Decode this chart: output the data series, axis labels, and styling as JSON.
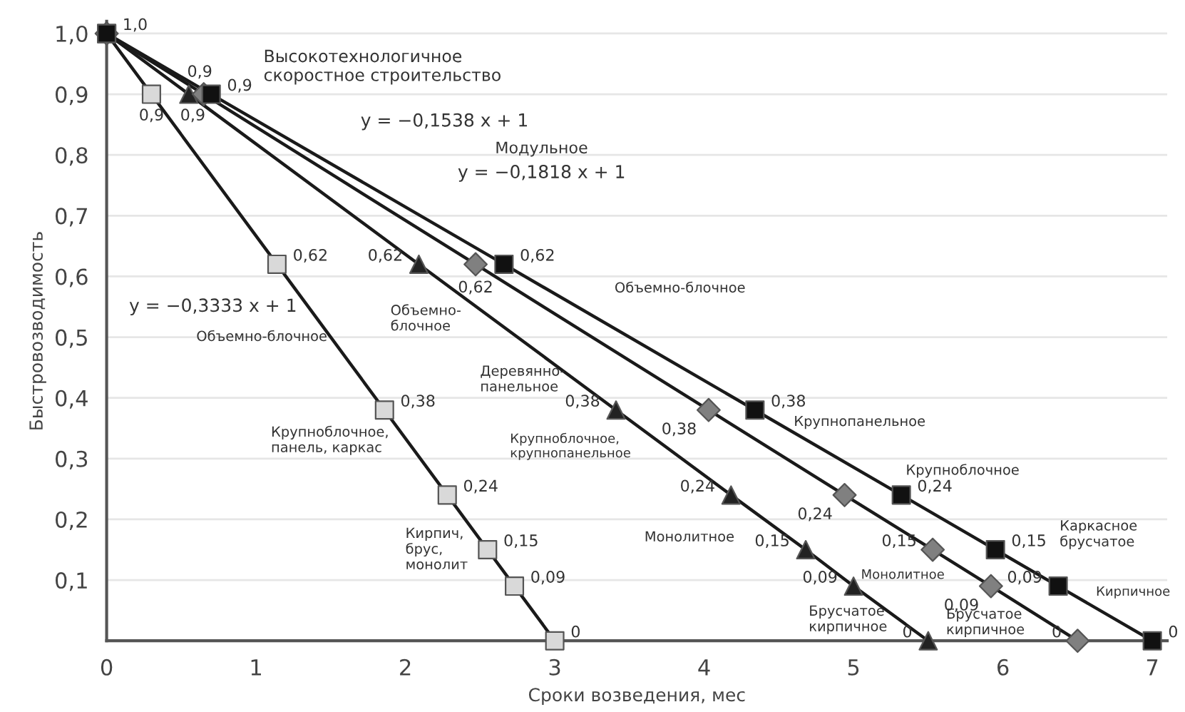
{
  "chart_data": {
    "type": "line",
    "xlabel": "Сроки возведения, мес",
    "ylabel": "Быстровозводимость",
    "xlim": [
      0,
      7.1
    ],
    "ylim": [
      0,
      1.02
    ],
    "xticks": [
      0,
      1,
      2,
      3,
      4,
      5,
      6,
      7
    ],
    "yticks": [
      {
        "value": 0.1,
        "label": "0,1"
      },
      {
        "value": 0.2,
        "label": "0,2"
      },
      {
        "value": 0.3,
        "label": "0,3"
      },
      {
        "value": 0.4,
        "label": "0,4"
      },
      {
        "value": 0.5,
        "label": "0,5"
      },
      {
        "value": 0.6,
        "label": "0,6"
      },
      {
        "value": 0.7,
        "label": "0,7"
      },
      {
        "value": 0.8,
        "label": "0,8"
      },
      {
        "value": 0.9,
        "label": "0,9"
      },
      {
        "value": 1.0,
        "label": "1,0"
      }
    ],
    "grid": "y",
    "legend": false,
    "line_style": "solid",
    "series": [
      {
        "color": "#d9d9d9",
        "marker": "square",
        "x": [
          0,
          0.3,
          1.14,
          1.86,
          2.28,
          2.55,
          2.73,
          3.0
        ],
        "values": [
          1.0,
          0.9,
          0.62,
          0.38,
          0.24,
          0.15,
          0.09,
          0
        ],
        "value_labels": [
          "1,0",
          "0,9",
          "0,62",
          "0,38",
          "0,24",
          "0,15",
          "0,09",
          "0"
        ]
      },
      {
        "color": "#222222",
        "marker": "triangle",
        "x": [
          0,
          0.55,
          2.09,
          3.41,
          4.18,
          4.68,
          5.0,
          5.5
        ],
        "values": [
          1.0,
          0.9,
          0.62,
          0.38,
          0.24,
          0.15,
          0.09,
          0
        ],
        "value_labels": [
          null,
          "0,9",
          "0,62",
          "0,38",
          "0,24",
          "0,15",
          "0,09",
          "0"
        ]
      },
      {
        "color": "#808080",
        "marker": "diamond",
        "x": [
          0,
          0.65,
          2.47,
          4.03,
          4.94,
          5.53,
          5.92,
          6.5
        ],
        "values": [
          1.0,
          0.9,
          0.62,
          0.38,
          0.24,
          0.15,
          0.09,
          0
        ],
        "value_labels": [
          null,
          "0,9",
          "0,62",
          "0,38",
          "0,24",
          "0,15",
          "0,09",
          "0"
        ]
      },
      {
        "color": "#111111",
        "marker": "square",
        "x": [
          0,
          0.7,
          2.66,
          4.34,
          5.32,
          5.95,
          6.37,
          7.0
        ],
        "values": [
          1.0,
          0.9,
          0.62,
          0.38,
          0.24,
          0.15,
          0.09,
          0
        ],
        "value_labels": [
          null,
          "0,9",
          "0,62",
          "0,38",
          "0,24",
          "0,15",
          "0,09",
          "0"
        ]
      }
    ],
    "annotations": [
      "Высокотехнологичное\nскоростное строительство",
      "y = −0,1538 x + 1",
      "Модульное",
      "y = −0,1818 x + 1",
      "y = −0,3333 x + 1",
      "Объемно-блочное",
      "Объемно-\nблочное",
      "Объемно-блочное",
      "Деревянно-\nпанельное",
      "Крупноблочное,\nпанель, каркас",
      "Крупноблочное,\nкрупнопанельное",
      "Кирпич,\nбрус,\nмонолит",
      "Крупнопанельное",
      "Крупноблочное",
      "Монолитное",
      "Монолитное",
      "Каркасное\nбрусчатое",
      "Брусчатое\nкирпичное",
      "Брусчатое\nкирпичное",
      "Кирпичное"
    ]
  }
}
